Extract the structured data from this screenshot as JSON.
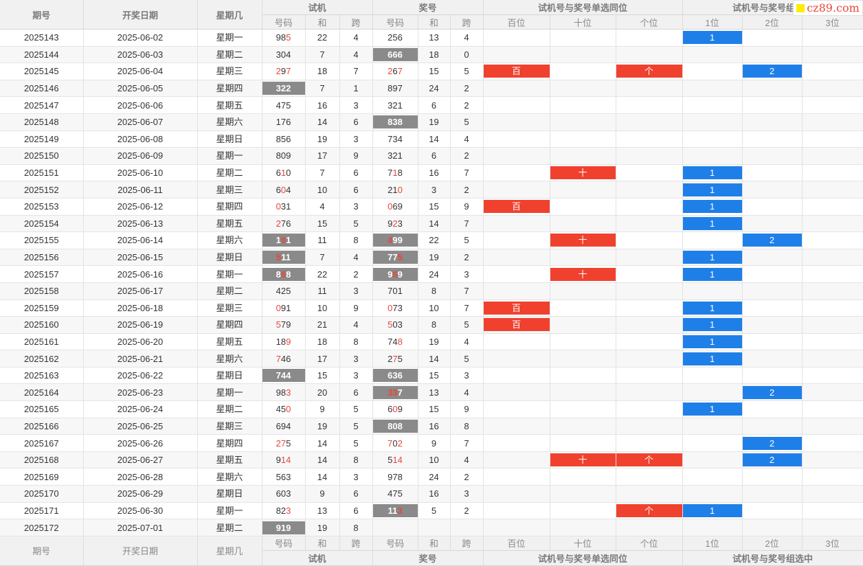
{
  "site_logo": "cz89.com",
  "header": {
    "issue": "期号",
    "date": "开奖日期",
    "weekday": "星期几",
    "trial": "试机",
    "draw": "奖号",
    "single": "试机号与奖号单选同位",
    "group": "试机号与奖号组选中",
    "sub": {
      "num": "号码",
      "sum": "和",
      "span": "跨",
      "hundreds": "百位",
      "tens": "十位",
      "units": "个位",
      "p1": "1位",
      "p2": "2位",
      "p3": "3位"
    }
  },
  "rows": [
    {
      "issue": "2025143",
      "date": "2025-06-02",
      "weekday": "星期一",
      "trial": "985",
      "trial_hl": [
        2
      ],
      "trial_gray": false,
      "trial_sum": "22",
      "trial_span": "4",
      "draw": "256",
      "draw_hl": [],
      "draw_gray": false,
      "draw_sum": "13",
      "draw_span": "4",
      "hundreds": "",
      "tens": "",
      "units": "",
      "p1": "1",
      "p2": "",
      "p3": ""
    },
    {
      "issue": "2025144",
      "date": "2025-06-03",
      "weekday": "星期二",
      "trial": "304",
      "trial_hl": [],
      "trial_gray": false,
      "trial_sum": "7",
      "trial_span": "4",
      "draw": "666",
      "draw_hl": [],
      "draw_gray": true,
      "draw_sum": "18",
      "draw_span": "0",
      "hundreds": "",
      "tens": "",
      "units": "",
      "p1": "",
      "p2": "",
      "p3": ""
    },
    {
      "issue": "2025145",
      "date": "2025-06-04",
      "weekday": "星期三",
      "trial": "297",
      "trial_hl": [
        0,
        2
      ],
      "trial_gray": false,
      "trial_sum": "18",
      "trial_span": "7",
      "draw": "267",
      "draw_hl": [
        0,
        2
      ],
      "draw_gray": false,
      "draw_sum": "15",
      "draw_span": "5",
      "hundreds": "百",
      "tens": "",
      "units": "个",
      "p1": "",
      "p2": "2",
      "p3": ""
    },
    {
      "issue": "2025146",
      "date": "2025-06-05",
      "weekday": "星期四",
      "trial": "322",
      "trial_hl": [],
      "trial_gray": true,
      "trial_sum": "7",
      "trial_span": "1",
      "draw": "897",
      "draw_hl": [],
      "draw_gray": false,
      "draw_sum": "24",
      "draw_span": "2",
      "hundreds": "",
      "tens": "",
      "units": "",
      "p1": "",
      "p2": "",
      "p3": ""
    },
    {
      "issue": "2025147",
      "date": "2025-06-06",
      "weekday": "星期五",
      "trial": "475",
      "trial_hl": [],
      "trial_gray": false,
      "trial_sum": "16",
      "trial_span": "3",
      "draw": "321",
      "draw_hl": [],
      "draw_gray": false,
      "draw_sum": "6",
      "draw_span": "2",
      "hundreds": "",
      "tens": "",
      "units": "",
      "p1": "",
      "p2": "",
      "p3": ""
    },
    {
      "issue": "2025148",
      "date": "2025-06-07",
      "weekday": "星期六",
      "trial": "176",
      "trial_hl": [],
      "trial_gray": false,
      "trial_sum": "14",
      "trial_span": "6",
      "draw": "838",
      "draw_hl": [],
      "draw_gray": true,
      "draw_sum": "19",
      "draw_span": "5",
      "hundreds": "",
      "tens": "",
      "units": "",
      "p1": "",
      "p2": "",
      "p3": ""
    },
    {
      "issue": "2025149",
      "date": "2025-06-08",
      "weekday": "星期日",
      "trial": "856",
      "trial_hl": [],
      "trial_gray": false,
      "trial_sum": "19",
      "trial_span": "3",
      "draw": "734",
      "draw_hl": [],
      "draw_gray": false,
      "draw_sum": "14",
      "draw_span": "4",
      "hundreds": "",
      "tens": "",
      "units": "",
      "p1": "",
      "p2": "",
      "p3": ""
    },
    {
      "issue": "2025150",
      "date": "2025-06-09",
      "weekday": "星期一",
      "trial": "809",
      "trial_hl": [],
      "trial_gray": false,
      "trial_sum": "17",
      "trial_span": "9",
      "draw": "321",
      "draw_hl": [],
      "draw_gray": false,
      "draw_sum": "6",
      "draw_span": "2",
      "hundreds": "",
      "tens": "",
      "units": "",
      "p1": "",
      "p2": "",
      "p3": ""
    },
    {
      "issue": "2025151",
      "date": "2025-06-10",
      "weekday": "星期二",
      "trial": "610",
      "trial_hl": [
        1
      ],
      "trial_gray": false,
      "trial_sum": "7",
      "trial_span": "6",
      "draw": "718",
      "draw_hl": [
        1
      ],
      "draw_gray": false,
      "draw_sum": "16",
      "draw_span": "7",
      "hundreds": "",
      "tens": "十",
      "units": "",
      "p1": "1",
      "p2": "",
      "p3": ""
    },
    {
      "issue": "2025152",
      "date": "2025-06-11",
      "weekday": "星期三",
      "trial": "604",
      "trial_hl": [
        1
      ],
      "trial_gray": false,
      "trial_sum": "10",
      "trial_span": "6",
      "draw": "210",
      "draw_hl": [
        2
      ],
      "draw_gray": false,
      "draw_sum": "3",
      "draw_span": "2",
      "hundreds": "",
      "tens": "",
      "units": "",
      "p1": "1",
      "p2": "",
      "p3": ""
    },
    {
      "issue": "2025153",
      "date": "2025-06-12",
      "weekday": "星期四",
      "trial": "031",
      "trial_hl": [
        0
      ],
      "trial_gray": false,
      "trial_sum": "4",
      "trial_span": "3",
      "draw": "069",
      "draw_hl": [
        0
      ],
      "draw_gray": false,
      "draw_sum": "15",
      "draw_span": "9",
      "hundreds": "百",
      "tens": "",
      "units": "",
      "p1": "1",
      "p2": "",
      "p3": ""
    },
    {
      "issue": "2025154",
      "date": "2025-06-13",
      "weekday": "星期五",
      "trial": "276",
      "trial_hl": [
        0
      ],
      "trial_gray": false,
      "trial_sum": "15",
      "trial_span": "5",
      "draw": "923",
      "draw_hl": [
        1
      ],
      "draw_gray": false,
      "draw_sum": "14",
      "draw_span": "7",
      "hundreds": "",
      "tens": "",
      "units": "",
      "p1": "1",
      "p2": "",
      "p3": ""
    },
    {
      "issue": "2025155",
      "date": "2025-06-14",
      "weekday": "星期六",
      "trial": "191",
      "trial_hl": [
        1
      ],
      "trial_gray": true,
      "trial_sum": "11",
      "trial_span": "8",
      "draw": "499",
      "draw_hl": [
        0
      ],
      "draw_gray": true,
      "draw_sum": "22",
      "draw_span": "5",
      "hundreds": "",
      "tens": "十",
      "units": "",
      "p1": "",
      "p2": "2",
      "p3": ""
    },
    {
      "issue": "2025156",
      "date": "2025-06-15",
      "weekday": "星期日",
      "trial": "511",
      "trial_hl": [
        0
      ],
      "trial_gray": true,
      "trial_sum": "7",
      "trial_span": "4",
      "draw": "775",
      "draw_hl": [
        2
      ],
      "draw_gray": true,
      "draw_sum": "19",
      "draw_span": "2",
      "hundreds": "",
      "tens": "",
      "units": "",
      "p1": "1",
      "p2": "",
      "p3": ""
    },
    {
      "issue": "2025157",
      "date": "2025-06-16",
      "weekday": "星期一",
      "trial": "868",
      "trial_hl": [
        1
      ],
      "trial_gray": true,
      "trial_sum": "22",
      "trial_span": "2",
      "draw": "969",
      "draw_hl": [
        1
      ],
      "draw_gray": true,
      "draw_sum": "24",
      "draw_span": "3",
      "hundreds": "",
      "tens": "十",
      "units": "",
      "p1": "1",
      "p2": "",
      "p3": ""
    },
    {
      "issue": "2025158",
      "date": "2025-06-17",
      "weekday": "星期二",
      "trial": "425",
      "trial_hl": [],
      "trial_gray": false,
      "trial_sum": "11",
      "trial_span": "3",
      "draw": "701",
      "draw_hl": [],
      "draw_gray": false,
      "draw_sum": "8",
      "draw_span": "7",
      "hundreds": "",
      "tens": "",
      "units": "",
      "p1": "",
      "p2": "",
      "p3": ""
    },
    {
      "issue": "2025159",
      "date": "2025-06-18",
      "weekday": "星期三",
      "trial": "091",
      "trial_hl": [
        0
      ],
      "trial_gray": false,
      "trial_sum": "10",
      "trial_span": "9",
      "draw": "073",
      "draw_hl": [
        0
      ],
      "draw_gray": false,
      "draw_sum": "10",
      "draw_span": "7",
      "hundreds": "百",
      "tens": "",
      "units": "",
      "p1": "1",
      "p2": "",
      "p3": ""
    },
    {
      "issue": "2025160",
      "date": "2025-06-19",
      "weekday": "星期四",
      "trial": "579",
      "trial_hl": [
        0
      ],
      "trial_gray": false,
      "trial_sum": "21",
      "trial_span": "4",
      "draw": "503",
      "draw_hl": [
        0
      ],
      "draw_gray": false,
      "draw_sum": "8",
      "draw_span": "5",
      "hundreds": "百",
      "tens": "",
      "units": "",
      "p1": "1",
      "p2": "",
      "p3": ""
    },
    {
      "issue": "2025161",
      "date": "2025-06-20",
      "weekday": "星期五",
      "trial": "189",
      "trial_hl": [
        2
      ],
      "trial_gray": false,
      "trial_sum": "18",
      "trial_span": "8",
      "draw": "748",
      "draw_hl": [
        2
      ],
      "draw_gray": false,
      "draw_sum": "19",
      "draw_span": "4",
      "hundreds": "",
      "tens": "",
      "units": "",
      "p1": "1",
      "p2": "",
      "p3": ""
    },
    {
      "issue": "2025162",
      "date": "2025-06-21",
      "weekday": "星期六",
      "trial": "746",
      "trial_hl": [
        0
      ],
      "trial_gray": false,
      "trial_sum": "17",
      "trial_span": "3",
      "draw": "275",
      "draw_hl": [
        1
      ],
      "draw_gray": false,
      "draw_sum": "14",
      "draw_span": "5",
      "hundreds": "",
      "tens": "",
      "units": "",
      "p1": "1",
      "p2": "",
      "p3": ""
    },
    {
      "issue": "2025163",
      "date": "2025-06-22",
      "weekday": "星期日",
      "trial": "744",
      "trial_hl": [],
      "trial_gray": true,
      "trial_sum": "15",
      "trial_span": "3",
      "draw": "636",
      "draw_hl": [],
      "draw_gray": true,
      "draw_sum": "15",
      "draw_span": "3",
      "hundreds": "",
      "tens": "",
      "units": "",
      "p1": "",
      "p2": "",
      "p3": ""
    },
    {
      "issue": "2025164",
      "date": "2025-06-23",
      "weekday": "星期一",
      "trial": "983",
      "trial_hl": [
        2
      ],
      "trial_gray": false,
      "trial_sum": "20",
      "trial_span": "6",
      "draw": "337",
      "draw_hl": [
        0,
        1
      ],
      "draw_gray": true,
      "draw_sum": "13",
      "draw_span": "4",
      "hundreds": "",
      "tens": "",
      "units": "",
      "p1": "",
      "p2": "2",
      "p3": ""
    },
    {
      "issue": "2025165",
      "date": "2025-06-24",
      "weekday": "星期二",
      "trial": "450",
      "trial_hl": [
        2
      ],
      "trial_gray": false,
      "trial_sum": "9",
      "trial_span": "5",
      "draw": "609",
      "draw_hl": [
        1
      ],
      "draw_gray": false,
      "draw_sum": "15",
      "draw_span": "9",
      "hundreds": "",
      "tens": "",
      "units": "",
      "p1": "1",
      "p2": "",
      "p3": ""
    },
    {
      "issue": "2025166",
      "date": "2025-06-25",
      "weekday": "星期三",
      "trial": "694",
      "trial_hl": [],
      "trial_gray": false,
      "trial_sum": "19",
      "trial_span": "5",
      "draw": "808",
      "draw_hl": [],
      "draw_gray": true,
      "draw_sum": "16",
      "draw_span": "8",
      "hundreds": "",
      "tens": "",
      "units": "",
      "p1": "",
      "p2": "",
      "p3": ""
    },
    {
      "issue": "2025167",
      "date": "2025-06-26",
      "weekday": "星期四",
      "trial": "275",
      "trial_hl": [
        0,
        1
      ],
      "trial_gray": false,
      "trial_sum": "14",
      "trial_span": "5",
      "draw": "702",
      "draw_hl": [
        0,
        2
      ],
      "draw_gray": false,
      "draw_sum": "9",
      "draw_span": "7",
      "hundreds": "",
      "tens": "",
      "units": "",
      "p1": "",
      "p2": "2",
      "p3": ""
    },
    {
      "issue": "2025168",
      "date": "2025-06-27",
      "weekday": "星期五",
      "trial": "914",
      "trial_hl": [
        1,
        2
      ],
      "trial_gray": false,
      "trial_sum": "14",
      "trial_span": "8",
      "draw": "514",
      "draw_hl": [
        1,
        2
      ],
      "draw_gray": false,
      "draw_sum": "10",
      "draw_span": "4",
      "hundreds": "",
      "tens": "十",
      "units": "个",
      "p1": "",
      "p2": "2",
      "p3": ""
    },
    {
      "issue": "2025169",
      "date": "2025-06-28",
      "weekday": "星期六",
      "trial": "563",
      "trial_hl": [],
      "trial_gray": false,
      "trial_sum": "14",
      "trial_span": "3",
      "draw": "978",
      "draw_hl": [],
      "draw_gray": false,
      "draw_sum": "24",
      "draw_span": "2",
      "hundreds": "",
      "tens": "",
      "units": "",
      "p1": "",
      "p2": "",
      "p3": ""
    },
    {
      "issue": "2025170",
      "date": "2025-06-29",
      "weekday": "星期日",
      "trial": "603",
      "trial_hl": [],
      "trial_gray": false,
      "trial_sum": "9",
      "trial_span": "6",
      "draw": "475",
      "draw_hl": [],
      "draw_gray": false,
      "draw_sum": "16",
      "draw_span": "3",
      "hundreds": "",
      "tens": "",
      "units": "",
      "p1": "",
      "p2": "",
      "p3": ""
    },
    {
      "issue": "2025171",
      "date": "2025-06-30",
      "weekday": "星期一",
      "trial": "823",
      "trial_hl": [
        2
      ],
      "trial_gray": false,
      "trial_sum": "13",
      "trial_span": "6",
      "draw": "113",
      "draw_hl": [
        2
      ],
      "draw_gray": true,
      "draw_sum": "5",
      "draw_span": "2",
      "hundreds": "",
      "tens": "",
      "units": "个",
      "p1": "1",
      "p2": "",
      "p3": ""
    },
    {
      "issue": "2025172",
      "date": "2025-07-01",
      "weekday": "星期二",
      "trial": "919",
      "trial_hl": [],
      "trial_gray": true,
      "trial_sum": "19",
      "trial_span": "8",
      "draw": "",
      "draw_hl": [],
      "draw_gray": false,
      "draw_sum": "",
      "draw_span": "",
      "hundreds": "",
      "tens": "",
      "units": "",
      "p1": "",
      "p2": "",
      "p3": ""
    }
  ]
}
